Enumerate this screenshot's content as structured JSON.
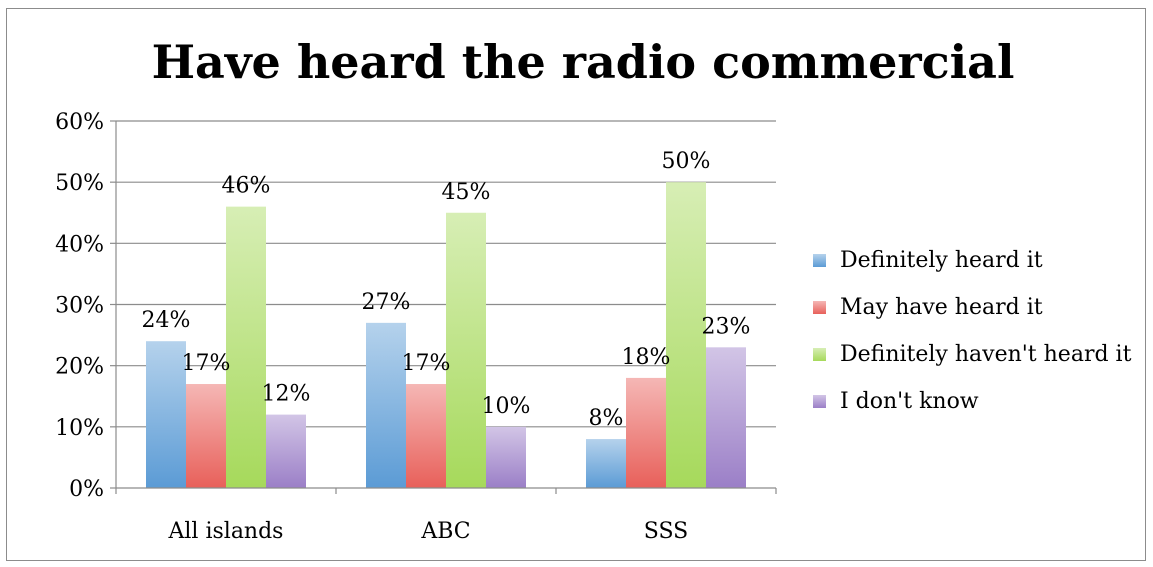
{
  "chart_data": {
    "type": "bar",
    "title": "Have heard the radio commercial",
    "xlabel": "",
    "ylabel": "",
    "categories": [
      "All islands",
      "ABC",
      "SSS"
    ],
    "ylim": [
      0,
      0.6
    ],
    "yticks": [
      "0%",
      "10%",
      "20%",
      "30%",
      "40%",
      "50%",
      "60%"
    ],
    "grid": true,
    "legend_position": "right",
    "series": [
      {
        "name": "Definitely heard it",
        "values": [
          0.24,
          0.27,
          0.08
        ],
        "labels": [
          "24%",
          "27%",
          "8%"
        ],
        "color": "#5b9bd5"
      },
      {
        "name": "May have heard it",
        "values": [
          0.17,
          0.17,
          0.18
        ],
        "labels": [
          "17%",
          "17%",
          "18%"
        ],
        "color": "#e8605a"
      },
      {
        "name": "Definitely haven't heard it",
        "values": [
          0.46,
          0.45,
          0.5
        ],
        "labels": [
          "46%",
          "45%",
          "50%"
        ],
        "color": "#a6d95b"
      },
      {
        "name": "I don't know",
        "values": [
          0.12,
          0.1,
          0.23
        ],
        "labels": [
          "12%",
          "10%",
          "23%"
        ],
        "color": "#9b7fc7"
      }
    ]
  }
}
